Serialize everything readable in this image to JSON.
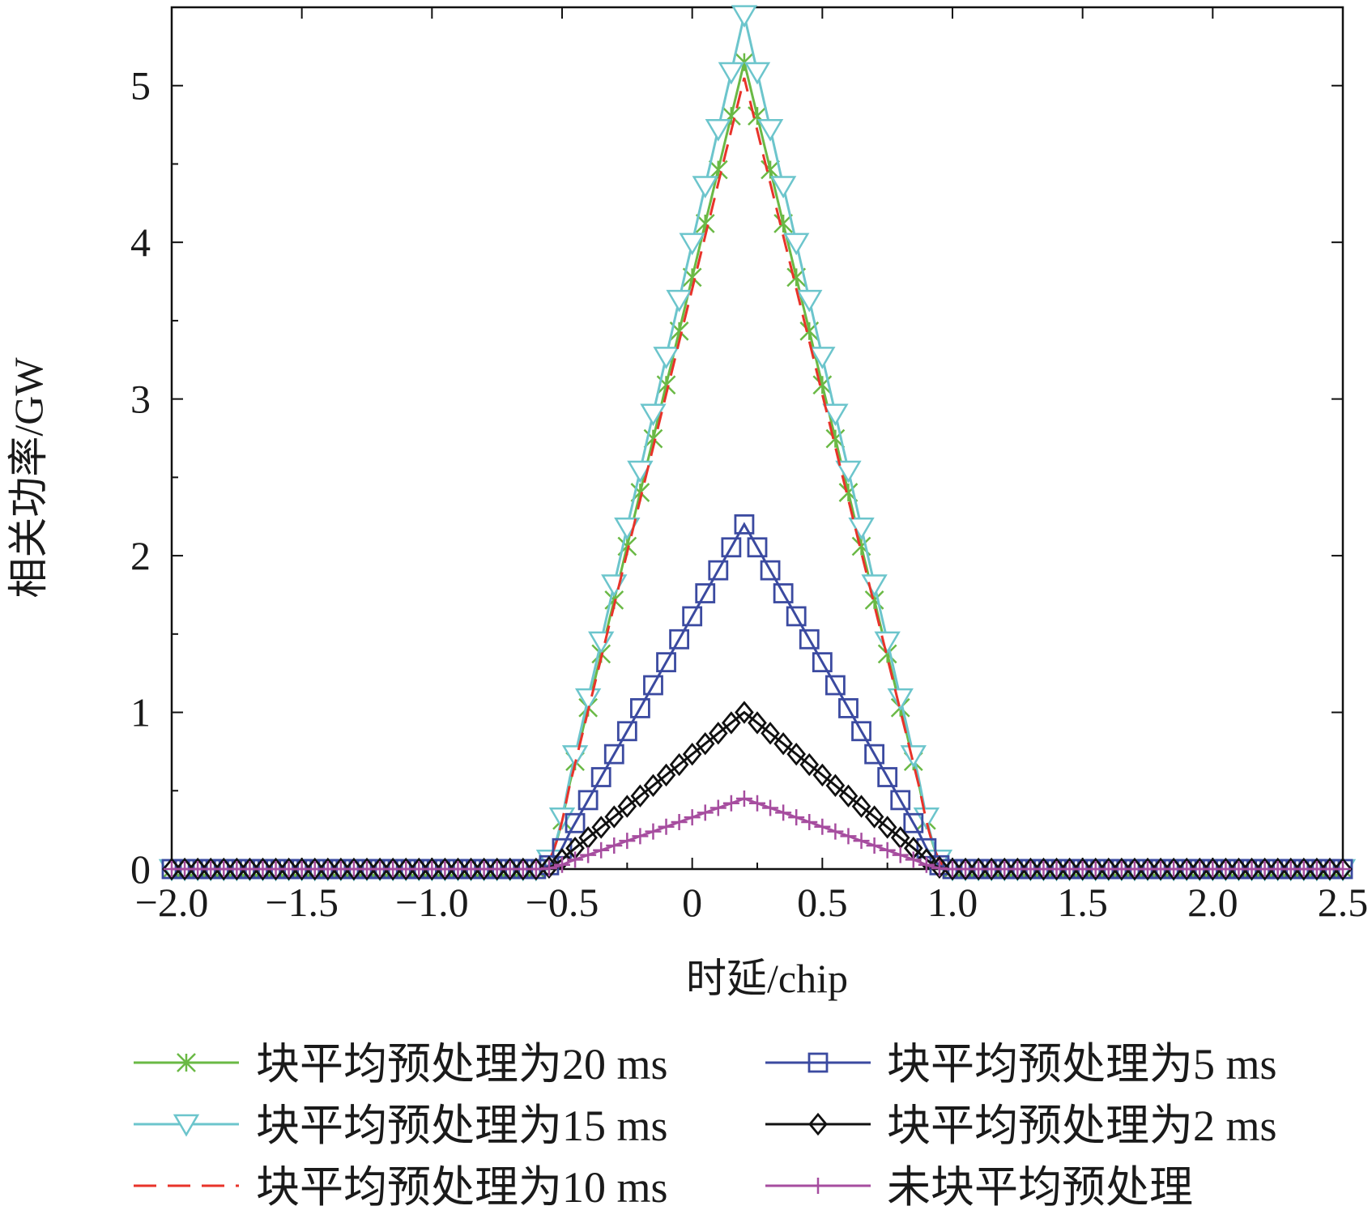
{
  "chart_data": {
    "type": "line",
    "xlabel": "时延/chip",
    "ylabel": "相关功率/GW",
    "xlim": [
      -2.0,
      2.5
    ],
    "ylim": [
      0,
      5.5
    ],
    "xticks": [
      "−2.0",
      "−1.5",
      "−1.0",
      "−0.5",
      "0",
      "0.5",
      "1.0",
      "1.5",
      "2.0",
      "2.5"
    ],
    "xtick_values": [
      -2.0,
      -1.5,
      -1.0,
      -0.5,
      0,
      0.5,
      1.0,
      1.5,
      2.0,
      2.5
    ],
    "yticks": [
      "0",
      "1",
      "2",
      "3",
      "4",
      "5"
    ],
    "ytick_values": [
      0,
      1,
      2,
      3,
      4,
      5
    ],
    "grid": false,
    "legend_position": "bottom",
    "series_shape": "triangular correlation peak centered at delay 0.2 chip, zero outside [-0.6, 1.0]",
    "series": [
      {
        "name": "块平均预处理为20 ms",
        "peak": 5.15,
        "color": "#6ab945",
        "marker": "x",
        "line": "solid"
      },
      {
        "name": "块平均预处理为15 ms",
        "peak": 5.45,
        "color": "#6cc5cc",
        "marker": "triangle-down",
        "line": "solid"
      },
      {
        "name": "块平均预处理为10 ms",
        "peak": 5.05,
        "color": "#e8332a",
        "marker": "none",
        "line": "dashed"
      },
      {
        "name": "块平均预处理为5 ms",
        "peak": 2.2,
        "color": "#3b4aa0",
        "marker": "square",
        "line": "solid"
      },
      {
        "name": "块平均预处理为2 ms",
        "peak": 1.0,
        "color": "#111111",
        "marker": "diamond",
        "line": "solid"
      },
      {
        "name": "未块平均预处理",
        "peak": 0.45,
        "color": "#a64d9f",
        "marker": "plus",
        "line": "solid"
      }
    ]
  }
}
